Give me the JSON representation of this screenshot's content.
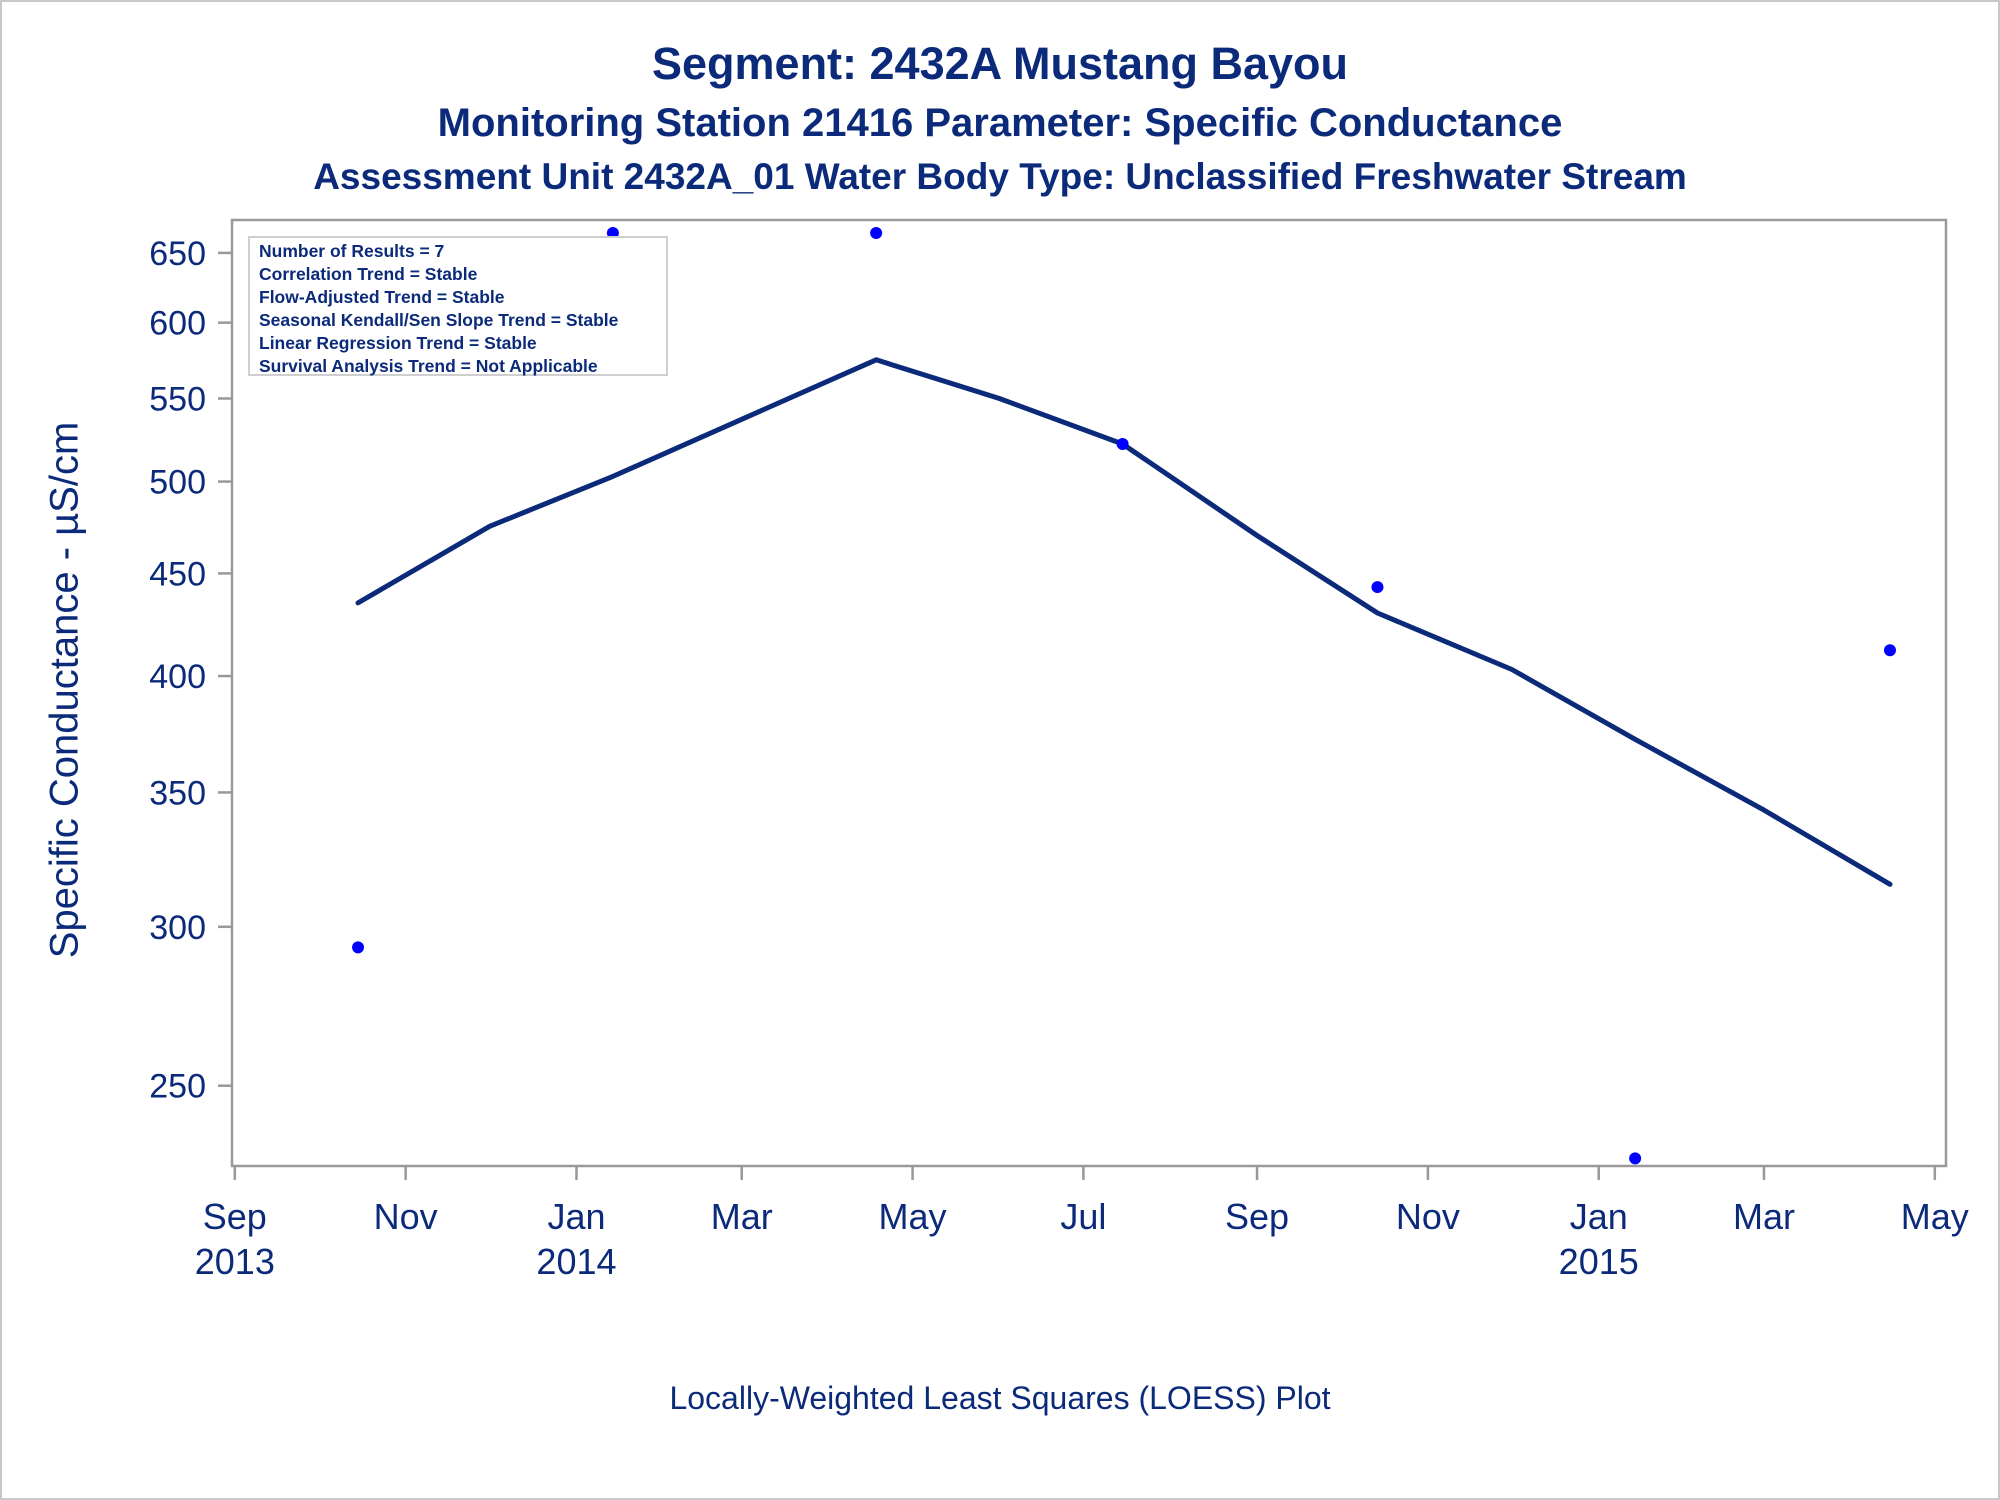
{
  "titles": {
    "line1": "Segment: 2432A  Mustang Bayou",
    "line2": "Monitoring Station 21416 Parameter: Specific Conductance",
    "line3": "Assessment Unit 2432A_01   Water Body Type: Unclassified Freshwater Stream"
  },
  "stats_box": [
    "Number of Results = 7",
    "Correlation Trend = Stable",
    "Flow-Adjusted Trend = Stable",
    "Seasonal Kendall/Sen Slope Trend = Stable",
    "Linear Regression Trend = Stable",
    "Survival Analysis Trend = Not Applicable"
  ],
  "footnote": "Locally-Weighted Least Squares (LOESS) Plot",
  "colors": {
    "text": "#0b2a7a",
    "points": "#0000ff",
    "line": "#0b2a7a",
    "axis": "#999999"
  },
  "chart_data": {
    "type": "scatter",
    "ylabel": "Specific Conductance -  µS/cm",
    "xlabel": "",
    "y_scale": "log",
    "ylim": [
      228,
      675
    ],
    "xlim": [
      "2013-08-31",
      "2015-05-05"
    ],
    "yticks": [
      250,
      300,
      350,
      400,
      450,
      500,
      550,
      600,
      650
    ],
    "xticks": [
      {
        "date": "2013-09-01",
        "label": [
          "Sep",
          "2013"
        ]
      },
      {
        "date": "2013-11-01",
        "label": [
          "Nov"
        ]
      },
      {
        "date": "2014-01-01",
        "label": [
          "Jan",
          "2014"
        ]
      },
      {
        "date": "2014-03-01",
        "label": [
          "Mar"
        ]
      },
      {
        "date": "2014-05-01",
        "label": [
          "May"
        ]
      },
      {
        "date": "2014-07-01",
        "label": [
          "Jul"
        ]
      },
      {
        "date": "2014-09-01",
        "label": [
          "Sep"
        ]
      },
      {
        "date": "2014-11-01",
        "label": [
          "Nov"
        ]
      },
      {
        "date": "2015-01-01",
        "label": [
          "Jan",
          "2015"
        ]
      },
      {
        "date": "2015-03-01",
        "label": [
          "Mar"
        ]
      },
      {
        "date": "2015-05-01",
        "label": [
          "May"
        ]
      }
    ],
    "series": [
      {
        "kind": "points",
        "points": [
          {
            "x": "2013-10-15",
            "y": 293
          },
          {
            "x": "2014-01-14",
            "y": 665
          },
          {
            "x": "2014-04-18",
            "y": 665
          },
          {
            "x": "2014-07-15",
            "y": 522
          },
          {
            "x": "2014-10-14",
            "y": 443
          },
          {
            "x": "2015-01-14",
            "y": 230
          },
          {
            "x": "2015-04-15",
            "y": 412
          }
        ]
      },
      {
        "kind": "loess",
        "points": [
          {
            "x": "2013-10-15",
            "y": 435
          },
          {
            "x": "2013-12-01",
            "y": 475
          },
          {
            "x": "2014-01-14",
            "y": 503
          },
          {
            "x": "2014-03-01",
            "y": 537
          },
          {
            "x": "2014-04-18",
            "y": 575
          },
          {
            "x": "2014-06-01",
            "y": 550
          },
          {
            "x": "2014-07-15",
            "y": 522
          },
          {
            "x": "2014-09-01",
            "y": 470
          },
          {
            "x": "2014-10-14",
            "y": 430
          },
          {
            "x": "2014-12-01",
            "y": 403
          },
          {
            "x": "2015-01-14",
            "y": 372
          },
          {
            "x": "2015-03-01",
            "y": 343
          },
          {
            "x": "2015-04-15",
            "y": 315
          }
        ]
      }
    ]
  }
}
